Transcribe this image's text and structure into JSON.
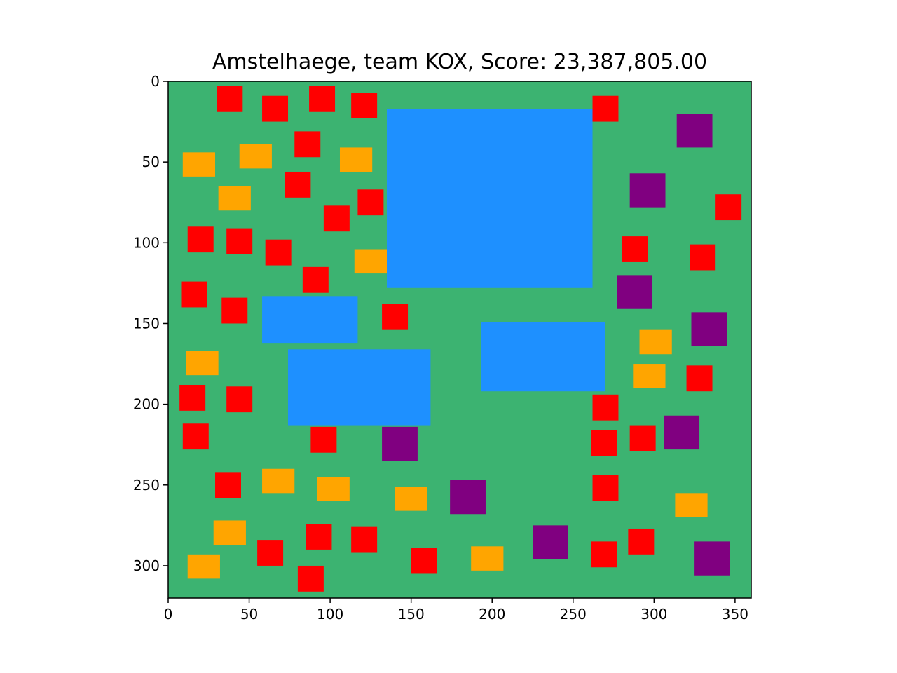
{
  "chart_data": {
    "type": "map",
    "title": "Amstelhaege, team KOX, Score: 23,387,805.00",
    "xlabel": "",
    "ylabel": "",
    "xlim": [
      0,
      360
    ],
    "ylim": [
      320,
      0
    ],
    "y_axis_inverted": true,
    "grid": false,
    "legend": "none",
    "x_ticks": [
      0,
      50,
      100,
      150,
      200,
      250,
      300,
      350
    ],
    "y_ticks": [
      0,
      50,
      100,
      150,
      200,
      250,
      300
    ],
    "colors": {
      "background": "#3cb371",
      "water": "#1e90ff",
      "small_house": "#ff0000",
      "medium_house": "#ffa500",
      "large_house": "#800080"
    },
    "water": [
      {
        "x": 135,
        "y": 17,
        "w": 127,
        "h": 111
      },
      {
        "x": 58,
        "y": 133,
        "w": 59,
        "h": 29
      },
      {
        "x": 74,
        "y": 166,
        "w": 88,
        "h": 47
      },
      {
        "x": 193,
        "y": 149,
        "w": 77,
        "h": 43
      }
    ],
    "houses": [
      {
        "type": "small_house",
        "x": 30,
        "y": 3,
        "w": 16,
        "h": 16
      },
      {
        "type": "small_house",
        "x": 58,
        "y": 9,
        "w": 16,
        "h": 16
      },
      {
        "type": "small_house",
        "x": 87,
        "y": 3,
        "w": 16,
        "h": 16
      },
      {
        "type": "small_house",
        "x": 113,
        "y": 7,
        "w": 16,
        "h": 16
      },
      {
        "type": "small_house",
        "x": 262,
        "y": 9,
        "w": 16,
        "h": 16
      },
      {
        "type": "small_house",
        "x": 78,
        "y": 31,
        "w": 16,
        "h": 16
      },
      {
        "type": "small_house",
        "x": 72,
        "y": 56,
        "w": 16,
        "h": 16
      },
      {
        "type": "small_house",
        "x": 117,
        "y": 67,
        "w": 16,
        "h": 16
      },
      {
        "type": "small_house",
        "x": 96,
        "y": 77,
        "w": 16,
        "h": 16
      },
      {
        "type": "small_house",
        "x": 338,
        "y": 70,
        "w": 16,
        "h": 16
      },
      {
        "type": "small_house",
        "x": 12,
        "y": 90,
        "w": 16,
        "h": 16
      },
      {
        "type": "small_house",
        "x": 36,
        "y": 91,
        "w": 16,
        "h": 16
      },
      {
        "type": "small_house",
        "x": 60,
        "y": 98,
        "w": 16,
        "h": 16
      },
      {
        "type": "small_house",
        "x": 280,
        "y": 96,
        "w": 16,
        "h": 16
      },
      {
        "type": "small_house",
        "x": 322,
        "y": 101,
        "w": 16,
        "h": 16
      },
      {
        "type": "small_house",
        "x": 83,
        "y": 115,
        "w": 16,
        "h": 16
      },
      {
        "type": "small_house",
        "x": 8,
        "y": 124,
        "w": 16,
        "h": 16
      },
      {
        "type": "small_house",
        "x": 33,
        "y": 134,
        "w": 16,
        "h": 16
      },
      {
        "type": "small_house",
        "x": 132,
        "y": 138,
        "w": 16,
        "h": 16
      },
      {
        "type": "small_house",
        "x": 320,
        "y": 176,
        "w": 16,
        "h": 16
      },
      {
        "type": "small_house",
        "x": 7,
        "y": 188,
        "w": 16,
        "h": 16
      },
      {
        "type": "small_house",
        "x": 36,
        "y": 189,
        "w": 16,
        "h": 16
      },
      {
        "type": "small_house",
        "x": 262,
        "y": 194,
        "w": 16,
        "h": 16
      },
      {
        "type": "small_house",
        "x": 9,
        "y": 212,
        "w": 16,
        "h": 16
      },
      {
        "type": "small_house",
        "x": 88,
        "y": 214,
        "w": 16,
        "h": 16
      },
      {
        "type": "small_house",
        "x": 261,
        "y": 216,
        "w": 16,
        "h": 16
      },
      {
        "type": "small_house",
        "x": 285,
        "y": 213,
        "w": 16,
        "h": 16
      },
      {
        "type": "small_house",
        "x": 29,
        "y": 242,
        "w": 16,
        "h": 16
      },
      {
        "type": "small_house",
        "x": 262,
        "y": 244,
        "w": 16,
        "h": 16
      },
      {
        "type": "small_house",
        "x": 85,
        "y": 274,
        "w": 16,
        "h": 16
      },
      {
        "type": "small_house",
        "x": 113,
        "y": 276,
        "w": 16,
        "h": 16
      },
      {
        "type": "small_house",
        "x": 284,
        "y": 277,
        "w": 16,
        "h": 16
      },
      {
        "type": "small_house",
        "x": 55,
        "y": 284,
        "w": 16,
        "h": 16
      },
      {
        "type": "small_house",
        "x": 261,
        "y": 285,
        "w": 16,
        "h": 16
      },
      {
        "type": "small_house",
        "x": 150,
        "y": 289,
        "w": 16,
        "h": 16
      },
      {
        "type": "small_house",
        "x": 80,
        "y": 300,
        "w": 16,
        "h": 16
      },
      {
        "type": "medium_house",
        "x": 9,
        "y": 44,
        "w": 20,
        "h": 15
      },
      {
        "type": "medium_house",
        "x": 44,
        "y": 39,
        "w": 20,
        "h": 15
      },
      {
        "type": "medium_house",
        "x": 106,
        "y": 41,
        "w": 20,
        "h": 15
      },
      {
        "type": "medium_house",
        "x": 31,
        "y": 65,
        "w": 20,
        "h": 15
      },
      {
        "type": "medium_house",
        "x": 115,
        "y": 104,
        "w": 20,
        "h": 15
      },
      {
        "type": "medium_house",
        "x": 291,
        "y": 154,
        "w": 20,
        "h": 15
      },
      {
        "type": "medium_house",
        "x": 11,
        "y": 167,
        "w": 20,
        "h": 15
      },
      {
        "type": "medium_house",
        "x": 287,
        "y": 175,
        "w": 20,
        "h": 15
      },
      {
        "type": "medium_house",
        "x": 58,
        "y": 240,
        "w": 20,
        "h": 15
      },
      {
        "type": "medium_house",
        "x": 92,
        "y": 245,
        "w": 20,
        "h": 15
      },
      {
        "type": "medium_house",
        "x": 140,
        "y": 251,
        "w": 20,
        "h": 15
      },
      {
        "type": "medium_house",
        "x": 313,
        "y": 255,
        "w": 20,
        "h": 15
      },
      {
        "type": "medium_house",
        "x": 28,
        "y": 272,
        "w": 20,
        "h": 15
      },
      {
        "type": "medium_house",
        "x": 187,
        "y": 288,
        "w": 20,
        "h": 15
      },
      {
        "type": "medium_house",
        "x": 12,
        "y": 293,
        "w": 20,
        "h": 15
      },
      {
        "type": "large_house",
        "x": 314,
        "y": 20,
        "w": 22,
        "h": 21
      },
      {
        "type": "large_house",
        "x": 285,
        "y": 57,
        "w": 22,
        "h": 21
      },
      {
        "type": "large_house",
        "x": 277,
        "y": 120,
        "w": 22,
        "h": 21
      },
      {
        "type": "large_house",
        "x": 323,
        "y": 143,
        "w": 22,
        "h": 21
      },
      {
        "type": "large_house",
        "x": 306,
        "y": 207,
        "w": 22,
        "h": 21
      },
      {
        "type": "large_house",
        "x": 132,
        "y": 214,
        "w": 22,
        "h": 21
      },
      {
        "type": "large_house",
        "x": 174,
        "y": 247,
        "w": 22,
        "h": 21
      },
      {
        "type": "large_house",
        "x": 225,
        "y": 275,
        "w": 22,
        "h": 21
      },
      {
        "type": "large_house",
        "x": 325,
        "y": 285,
        "w": 22,
        "h": 21
      }
    ]
  }
}
